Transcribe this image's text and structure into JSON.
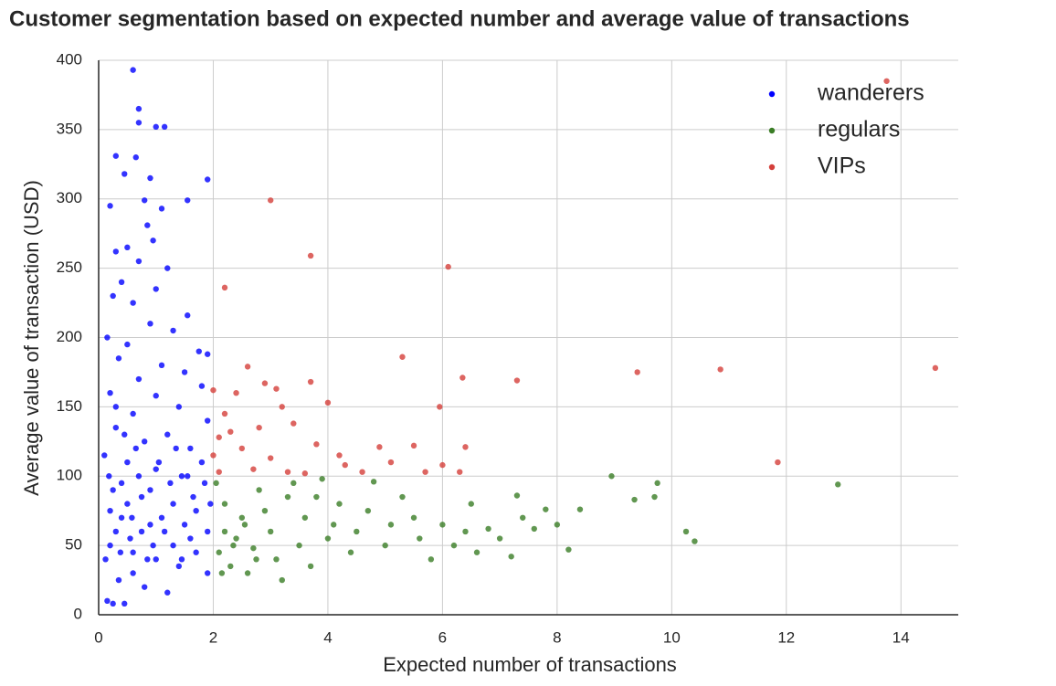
{
  "chart_data": {
    "type": "scatter",
    "title": "Customer segmentation based on expected number and average value of transactions",
    "x_label": "Expected number of transactions",
    "y_label": "Average value of transaction (USD)",
    "xlim": [
      0,
      15
    ],
    "xticks": [
      0,
      2,
      4,
      6,
      8,
      10,
      12,
      14
    ],
    "ylim": [
      0,
      400
    ],
    "yticks": [
      0,
      50,
      100,
      150,
      200,
      250,
      300,
      350,
      400
    ],
    "grid": true,
    "legend": "upper right",
    "series": [
      {
        "name": "wanderers",
        "color": "#0000ff",
        "x": [
          0.6,
          0.7,
          0.7,
          1.0,
          1.15,
          0.3,
          0.65,
          0.45,
          0.9,
          1.9,
          0.2,
          0.8,
          1.55,
          1.1,
          0.85,
          0.95,
          0.5,
          0.3,
          0.7,
          1.2,
          0.4,
          1.0,
          0.25,
          0.6,
          1.55,
          0.15,
          0.9,
          1.3,
          0.5,
          1.75,
          1.9,
          0.35,
          1.1,
          1.5,
          0.7,
          1.8,
          0.2,
          1.0,
          1.4,
          0.6,
          1.9,
          0.3,
          1.2,
          0.8,
          1.6,
          0.1,
          0.5,
          1.0,
          1.45,
          1.85,
          0.25,
          0.75,
          1.3,
          1.7,
          0.4,
          0.9,
          1.15,
          1.6,
          0.2,
          0.6,
          1.0,
          1.4,
          1.9,
          0.35,
          0.8,
          1.2,
          0.15,
          0.25,
          0.45,
          0.6,
          0.3,
          0.5,
          0.7,
          0.9,
          1.1,
          1.3,
          1.5,
          1.7,
          1.9,
          0.12,
          0.2,
          0.4,
          0.55,
          0.65,
          0.85,
          1.05,
          1.25,
          1.45,
          1.65,
          1.8,
          0.3,
          0.45,
          0.75,
          0.95,
          1.35,
          1.55,
          1.95,
          0.18,
          0.38,
          0.58
        ],
        "values": [
          393,
          365,
          355,
          352,
          352,
          331,
          330,
          318,
          315,
          314,
          295,
          299,
          299,
          293,
          281,
          270,
          265,
          262,
          255,
          250,
          240,
          235,
          230,
          225,
          216,
          200,
          210,
          205,
          195,
          190,
          188,
          185,
          180,
          175,
          170,
          165,
          160,
          158,
          150,
          145,
          140,
          135,
          130,
          125,
          120,
          115,
          110,
          105,
          100,
          95,
          90,
          85,
          80,
          75,
          70,
          65,
          60,
          55,
          50,
          45,
          40,
          35,
          30,
          25,
          20,
          16,
          10,
          8,
          8,
          30,
          60,
          80,
          100,
          90,
          70,
          50,
          65,
          45,
          60,
          40,
          75,
          95,
          55,
          120,
          40,
          110,
          95,
          40,
          85,
          110,
          150,
          130,
          60,
          50,
          120,
          100,
          80,
          100,
          45,
          70
        ]
      },
      {
        "name": "regulars",
        "color": "#3a7d25",
        "x": [
          8.95,
          9.75,
          9.7,
          9.35,
          12.9,
          10.25,
          10.4,
          8.2,
          7.2,
          8.4,
          7.8,
          7.3,
          6.5,
          6.0,
          6.8,
          5.5,
          5.0,
          4.5,
          4.0,
          3.5,
          3.0,
          2.5,
          2.2,
          2.1,
          2.3,
          2.6,
          3.2,
          2.8,
          3.4,
          3.9,
          4.8,
          4.2,
          5.3,
          5.8,
          6.2,
          7.0,
          7.6,
          8.0,
          2.4,
          2.7,
          3.1,
          3.6,
          4.4,
          5.1,
          2.2,
          2.9,
          3.8,
          4.7,
          6.6,
          7.4,
          2.05,
          2.15,
          2.35,
          2.55,
          2.75,
          3.3,
          3.7,
          4.1,
          5.6,
          6.4
        ],
        "values": [
          100,
          95,
          85,
          83,
          94,
          60,
          53,
          47,
          42,
          76,
          76,
          86,
          80,
          65,
          62,
          70,
          50,
          60,
          55,
          50,
          60,
          70,
          80,
          45,
          35,
          30,
          25,
          90,
          95,
          98,
          96,
          80,
          85,
          40,
          50,
          55,
          62,
          65,
          55,
          48,
          40,
          70,
          45,
          65,
          60,
          75,
          85,
          75,
          45,
          70,
          95,
          30,
          50,
          65,
          40,
          85,
          35,
          65,
          55,
          60
        ]
      },
      {
        "name": "VIPs",
        "color": "#d43f3a",
        "x": [
          13.75,
          3.0,
          3.7,
          6.1,
          2.2,
          14.6,
          10.85,
          9.4,
          7.3,
          6.35,
          5.3,
          4.0,
          5.95,
          2.6,
          3.7,
          11.85,
          2.9,
          3.1,
          2.4,
          2.0,
          3.4,
          2.2,
          2.1,
          2.5,
          3.0,
          3.8,
          4.3,
          4.9,
          5.5,
          6.4,
          4.6,
          5.1,
          3.3,
          2.1,
          2.7,
          6.0,
          6.3,
          2.0,
          3.6,
          4.2,
          5.7,
          2.3,
          3.2,
          2.8
        ],
        "values": [
          385,
          299,
          259,
          251,
          236,
          178,
          177,
          175,
          169,
          171,
          186,
          153,
          150,
          179,
          168,
          110,
          167,
          163,
          160,
          162,
          138,
          145,
          128,
          120,
          113,
          123,
          108,
          121,
          122,
          121,
          103,
          110,
          103,
          103,
          105,
          108,
          103,
          115,
          102,
          115,
          103,
          132,
          150,
          135
        ]
      }
    ]
  }
}
